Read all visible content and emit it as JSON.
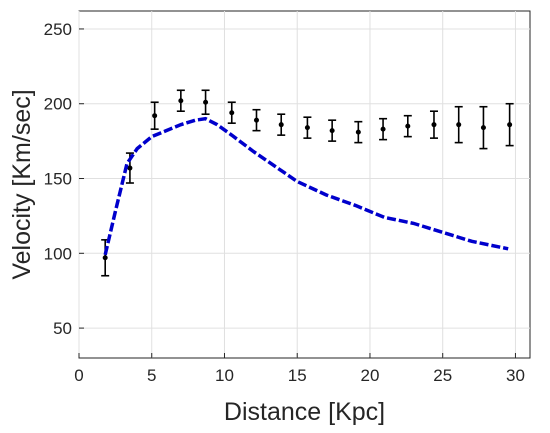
{
  "chart_data": {
    "type": "line",
    "title": "",
    "xlabel": "Distance  [Kpc]",
    "ylabel": "Velocity  [Km/sec]",
    "xlim": [
      0,
      31
    ],
    "ylim": [
      30,
      262
    ],
    "xticks": [
      0,
      5,
      10,
      15,
      20,
      25,
      30
    ],
    "yticks": [
      50,
      100,
      150,
      200,
      250
    ],
    "grid": true,
    "legend": "none",
    "series": [
      {
        "kind": "errorbar",
        "color": "#000000",
        "x": [
          1.8,
          3.5,
          5.2,
          7.0,
          8.7,
          10.5,
          12.2,
          13.9,
          15.7,
          17.4,
          19.2,
          20.9,
          22.6,
          24.4,
          26.1,
          27.8,
          29.6
        ],
        "y": [
          97,
          157,
          192,
          202,
          201,
          194,
          189,
          186,
          184,
          182,
          181,
          183,
          185,
          186,
          186,
          184,
          186
        ],
        "err": [
          12,
          10,
          9,
          7,
          8,
          7,
          7,
          7,
          7,
          7,
          7,
          7,
          7,
          9,
          12,
          14,
          14
        ]
      },
      {
        "kind": "dashed-line",
        "color": "#0000cc",
        "x": [
          1.8,
          2.5,
          3.3,
          4.0,
          5.0,
          6.0,
          7.0,
          8.0,
          8.7,
          9.5,
          10.5,
          12.0,
          13.5,
          15.0,
          17.0,
          19.0,
          21.0,
          23.0,
          25.0,
          27.0,
          29.5
        ],
        "y": [
          99,
          128,
          160,
          170,
          178,
          182,
          186,
          189,
          190,
          186,
          179,
          168,
          158,
          148,
          139,
          132,
          124,
          120,
          114,
          108,
          103
        ]
      }
    ]
  }
}
